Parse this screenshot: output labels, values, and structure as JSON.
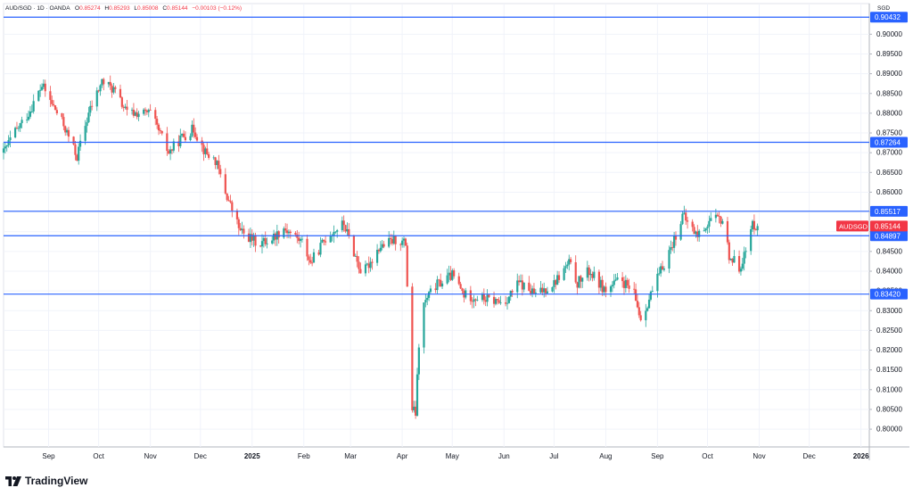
{
  "header": {
    "symbol_line": "AUD/SGD · 1D · OANDA",
    "open_label": "O",
    "open": "0.85274",
    "high_label": "H",
    "high": "0.85293",
    "low_label": "L",
    "low": "0.85008",
    "close_label": "C",
    "close": "0.85144",
    "change": "−0.00103 (−0.12%)"
  },
  "currency": "SGD",
  "brand": {
    "name": "TradingView",
    "icon": "tradingview-logo-icon"
  },
  "colors": {
    "up": "#26a69a",
    "down": "#ef5350",
    "hline": "#2962ff",
    "price_badge": "#f23645",
    "grid": "#f0f3fa",
    "text": "#131722"
  },
  "chart_data": {
    "type": "candlestick",
    "symbol": "AUDSGD",
    "ylim": [
      0.7955,
      0.9055
    ],
    "y_ticks": [
      "0.80000",
      "0.80500",
      "0.81000",
      "0.81500",
      "0.82000",
      "0.82500",
      "0.83000",
      "0.83500",
      "0.84000",
      "0.84500",
      "0.85000",
      "0.85500",
      "0.86000",
      "0.86500",
      "0.87000",
      "0.87500",
      "0.88000",
      "0.88500",
      "0.89000",
      "0.89500",
      "0.90000"
    ],
    "x_ticks": [
      {
        "label": "Sep",
        "date": "2024-09-01"
      },
      {
        "label": "Oct",
        "date": "2024-10-01"
      },
      {
        "label": "Nov",
        "date": "2024-11-01"
      },
      {
        "label": "Dec",
        "date": "2024-12-01"
      },
      {
        "label": "2025",
        "date": "2025-01-01",
        "bold": true
      },
      {
        "label": "Feb",
        "date": "2025-02-01"
      },
      {
        "label": "Mar",
        "date": "2025-03-01"
      },
      {
        "label": "Apr",
        "date": "2025-04-01"
      },
      {
        "label": "May",
        "date": "2025-05-01"
      },
      {
        "label": "Jun",
        "date": "2025-06-01"
      },
      {
        "label": "Jul",
        "date": "2025-07-01"
      },
      {
        "label": "Aug",
        "date": "2025-08-01"
      },
      {
        "label": "Sep",
        "date": "2025-09-01"
      },
      {
        "label": "Oct",
        "date": "2025-10-01"
      },
      {
        "label": "Nov",
        "date": "2025-11-01"
      },
      {
        "label": "Dec",
        "date": "2025-12-01"
      },
      {
        "label": "2026",
        "date": "2026-01-01",
        "bold": true
      }
    ],
    "xlim": [
      "2024-08-05",
      "2026-01-06"
    ],
    "horizontal_levels": [
      {
        "value": 0.90432,
        "label": "0.90432"
      },
      {
        "value": 0.87264,
        "label": "0.87264"
      },
      {
        "value": 0.85517,
        "label": "0.85517"
      },
      {
        "value": 0.84897,
        "label": "0.84897"
      },
      {
        "value": 0.8342,
        "label": "0.83420"
      }
    ],
    "last_price": {
      "value": 0.85144,
      "label": "0.85144",
      "symbol": "AUDSGD"
    },
    "path_points": [
      [
        "2024-08-05",
        0.87
      ],
      [
        "2024-08-10",
        0.874
      ],
      [
        "2024-08-20",
        0.88
      ],
      [
        "2024-08-28",
        0.887
      ],
      [
        "2024-09-10",
        0.877
      ],
      [
        "2024-09-18",
        0.869
      ],
      [
        "2024-09-25",
        0.88
      ],
      [
        "2024-10-03",
        0.888
      ],
      [
        "2024-10-10",
        0.886
      ],
      [
        "2024-10-18",
        0.88
      ],
      [
        "2024-11-01",
        0.88
      ],
      [
        "2024-11-12",
        0.87
      ],
      [
        "2024-11-20",
        0.874
      ],
      [
        "2024-11-27",
        0.876
      ],
      [
        "2024-12-04",
        0.87
      ],
      [
        "2024-12-10",
        0.868
      ],
      [
        "2024-12-16",
        0.86
      ],
      [
        "2024-12-25",
        0.85
      ],
      [
        "2025-01-05",
        0.847
      ],
      [
        "2025-01-12",
        0.848
      ],
      [
        "2025-01-20",
        0.851
      ],
      [
        "2025-02-01",
        0.847
      ],
      [
        "2025-02-05",
        0.842
      ],
      [
        "2025-02-15",
        0.849
      ],
      [
        "2025-02-25",
        0.852
      ],
      [
        "2025-03-02",
        0.846
      ],
      [
        "2025-03-08",
        0.839
      ],
      [
        "2025-03-18",
        0.846
      ],
      [
        "2025-03-28",
        0.848
      ],
      [
        "2025-04-03",
        0.847
      ],
      [
        "2025-04-07",
        0.805
      ],
      [
        "2025-04-09",
        0.804
      ],
      [
        "2025-04-12",
        0.83
      ],
      [
        "2025-04-20",
        0.836
      ],
      [
        "2025-05-01",
        0.839
      ],
      [
        "2025-05-08",
        0.834
      ],
      [
        "2025-05-20",
        0.833
      ],
      [
        "2025-06-01",
        0.832
      ],
      [
        "2025-06-10",
        0.837
      ],
      [
        "2025-06-20",
        0.834
      ],
      [
        "2025-07-01",
        0.837
      ],
      [
        "2025-07-10",
        0.842
      ],
      [
        "2025-07-15",
        0.837
      ],
      [
        "2025-07-22",
        0.84
      ],
      [
        "2025-08-01",
        0.835
      ],
      [
        "2025-08-10",
        0.838
      ],
      [
        "2025-08-18",
        0.834
      ],
      [
        "2025-08-22",
        0.828
      ],
      [
        "2025-09-01",
        0.838
      ],
      [
        "2025-09-10",
        0.847
      ],
      [
        "2025-09-16",
        0.854
      ],
      [
        "2025-09-25",
        0.849
      ],
      [
        "2025-10-03",
        0.853
      ],
      [
        "2025-10-10",
        0.853
      ],
      [
        "2025-10-14",
        0.844
      ],
      [
        "2025-10-20",
        0.841
      ],
      [
        "2025-10-25",
        0.846
      ],
      [
        "2025-10-28",
        0.852
      ],
      [
        "2025-10-31",
        0.8514
      ]
    ]
  }
}
